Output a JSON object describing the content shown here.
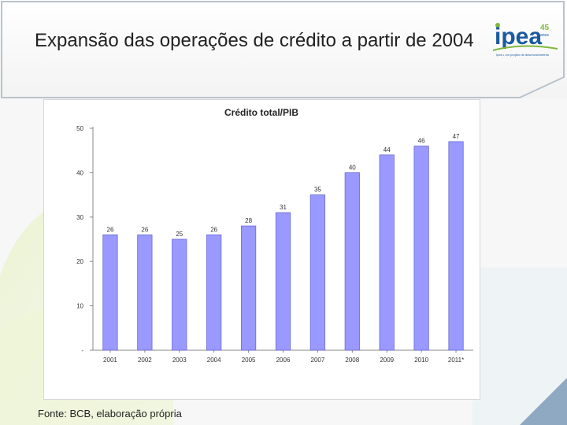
{
  "slide": {
    "title": "Expansão das operações de crédito a partir de 2004",
    "source": "Fonte: BCB, elaboração própria",
    "logo": {
      "text": "ipea",
      "anniversary": "45",
      "anos": "anos",
      "tagline": "Ipea • um projeto de desenvolvimento"
    },
    "colors": {
      "bar": "#9999ff",
      "bar_border": "#6b6bd6",
      "logo_blue": "#1a5aa0",
      "logo_green": "#7fb83e"
    }
  },
  "chart_data": {
    "type": "bar",
    "title": "Crédito total/PIB",
    "categories": [
      "2001",
      "2002",
      "2003",
      "2004",
      "2005",
      "2006",
      "2007",
      "2008",
      "2009",
      "2010",
      "2011*"
    ],
    "values": [
      26,
      26,
      25,
      26,
      28,
      31,
      35,
      40,
      44,
      46,
      47
    ],
    "data_labels": [
      "26",
      "26",
      "25",
      "26",
      "28",
      "31",
      "35",
      "40",
      "44",
      "46",
      "47"
    ],
    "yticks": [
      "-",
      "10",
      "20",
      "30",
      "40",
      "50"
    ],
    "ylim": [
      0,
      50
    ],
    "grid": false,
    "legend": "none"
  }
}
